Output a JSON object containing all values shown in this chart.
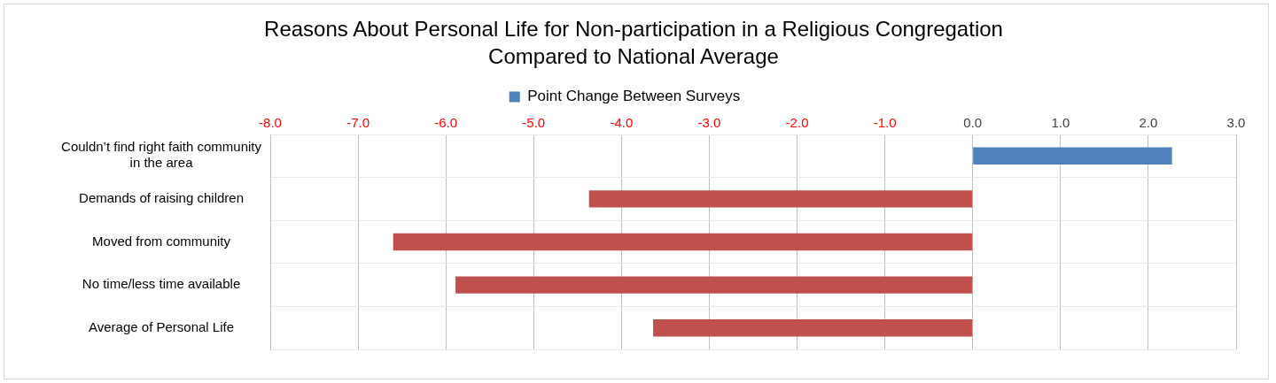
{
  "chart_data": {
    "type": "bar",
    "orientation": "horizontal",
    "title": "Reasons About Personal Life for Non-participation in a Religious Congregation Compared to National Average",
    "categories": [
      "Couldn’t find right faith community in the area",
      "Demands of raising children",
      "Moved from community",
      "No time/less time available",
      "Average of Personal Life"
    ],
    "series": [
      {
        "name": "Point Change Between Surveys",
        "color": "#4f81bd",
        "colors": [
          "#4f81bd",
          "#c0504d",
          "#c0504d",
          "#c0504d",
          "#c0504d"
        ],
        "values": [
          2.27,
          -4.37,
          -6.6,
          -5.89,
          -3.64
        ]
      }
    ],
    "xlim": [
      -8,
      3
    ],
    "xticks": [
      {
        "value": -8,
        "label": "-8.0"
      },
      {
        "value": -7,
        "label": "-7.0"
      },
      {
        "value": -6,
        "label": "-6.0"
      },
      {
        "value": -5,
        "label": "-5.0"
      },
      {
        "value": -4,
        "label": "-4.0"
      },
      {
        "value": -3,
        "label": "-3.0"
      },
      {
        "value": -2,
        "label": "-2.0"
      },
      {
        "value": -1,
        "label": "-1.0"
      },
      {
        "value": 0,
        "label": "0.0"
      },
      {
        "value": 1,
        "label": "1.0"
      },
      {
        "value": 2,
        "label": "2.0"
      },
      {
        "value": 3,
        "label": "3.0"
      }
    ],
    "grid": true,
    "legend": "top"
  }
}
